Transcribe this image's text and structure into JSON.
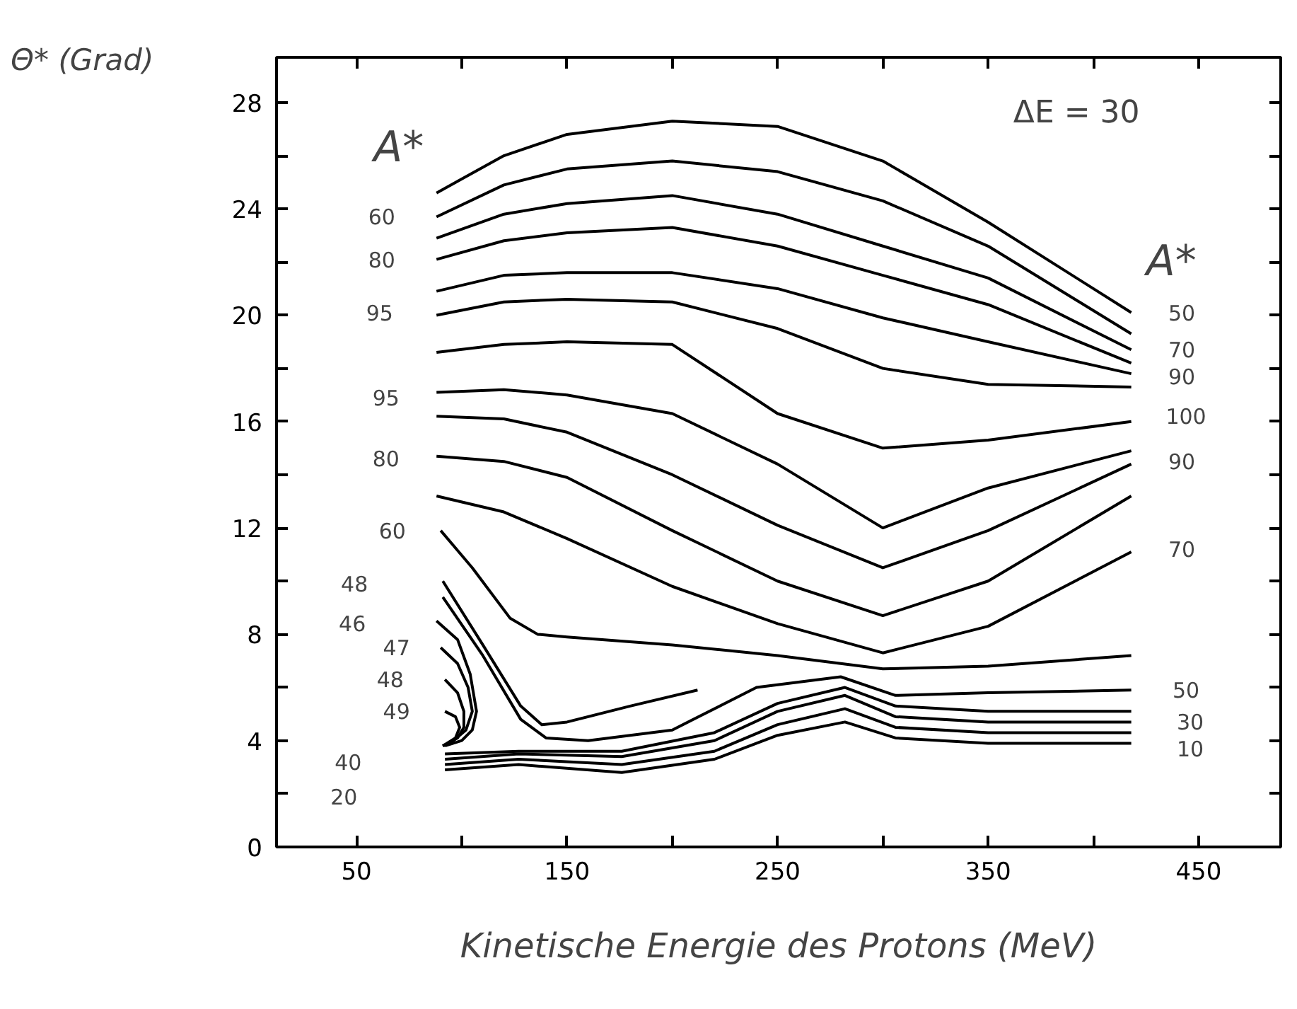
{
  "chart_data": {
    "type": "line",
    "xlabel": "Kinetische Energie des Protons (MeV)",
    "ylabel": "Θ* (Grad)",
    "xlim": [
      12,
      489
    ],
    "ylim": [
      0,
      29.7
    ],
    "xticks": [
      50,
      {
        "value": 100,
        "label": null
      },
      150,
      {
        "value": 200,
        "label": null
      },
      250,
      {
        "value": 300,
        "label": null
      },
      350,
      {
        "value": 400,
        "label": null
      },
      450
    ],
    "yticks": [
      0,
      {
        "value": 2,
        "label": null
      },
      4,
      {
        "value": 6,
        "label": null
      },
      8,
      {
        "value": 10,
        "label": null
      },
      12,
      {
        "value": 14,
        "label": null
      },
      16,
      {
        "value": 18,
        "label": null
      },
      20,
      {
        "value": 22,
        "label": null
      },
      24,
      {
        "value": 26,
        "label": null
      },
      28
    ],
    "series": [
      {
        "color": "#000000",
        "x": [
          88,
          120,
          150,
          200,
          250,
          300,
          350,
          418
        ],
        "values": [
          24.6,
          26.0,
          26.8,
          27.3,
          27.1,
          25.8,
          23.5,
          20.1
        ]
      },
      {
        "color": "#000000",
        "x": [
          88,
          120,
          150,
          200,
          250,
          300,
          350,
          418
        ],
        "values": [
          23.7,
          24.9,
          25.5,
          25.8,
          25.4,
          24.3,
          22.6,
          19.3
        ]
      },
      {
        "color": "#000000",
        "x": [
          88,
          120,
          150,
          200,
          250,
          300,
          350,
          418
        ],
        "values": [
          22.9,
          23.8,
          24.2,
          24.5,
          23.8,
          22.6,
          21.4,
          18.7
        ]
      },
      {
        "color": "#000000",
        "x": [
          88,
          120,
          150,
          200,
          250,
          300,
          350,
          418
        ],
        "values": [
          22.1,
          22.8,
          23.1,
          23.3,
          22.6,
          21.5,
          20.4,
          18.2
        ]
      },
      {
        "color": "#000000",
        "x": [
          88,
          120,
          150,
          200,
          250,
          300,
          350,
          418
        ],
        "values": [
          20.9,
          21.5,
          21.6,
          21.6,
          21.0,
          19.9,
          19.0,
          17.8
        ]
      },
      {
        "color": "#000000",
        "x": [
          88,
          120,
          150,
          200,
          250,
          300,
          350,
          418
        ],
        "values": [
          20.0,
          20.5,
          20.6,
          20.5,
          19.5,
          18.0,
          17.4,
          17.3
        ]
      },
      {
        "color": "#000000",
        "x": [
          88,
          120,
          150,
          200,
          250,
          300,
          350,
          418
        ],
        "values": [
          18.6,
          18.9,
          19.0,
          18.9,
          16.3,
          15.0,
          15.3,
          16.0
        ]
      },
      {
        "color": "#000000",
        "x": [
          88,
          120,
          150,
          200,
          250,
          300,
          350,
          418
        ],
        "values": [
          17.1,
          17.2,
          17.0,
          16.3,
          14.4,
          12.0,
          13.5,
          14.9
        ]
      },
      {
        "color": "#000000",
        "x": [
          88,
          120,
          150,
          200,
          250,
          300,
          350,
          418
        ],
        "values": [
          16.2,
          16.1,
          15.6,
          14.0,
          12.1,
          10.5,
          11.9,
          14.4
        ]
      },
      {
        "color": "#000000",
        "x": [
          88,
          120,
          150,
          200,
          250,
          300,
          350,
          418
        ],
        "values": [
          14.7,
          14.5,
          13.9,
          11.9,
          10.0,
          8.7,
          10.0,
          13.2
        ]
      },
      {
        "color": "#000000",
        "x": [
          88,
          120,
          150,
          200,
          250,
          300,
          350,
          418
        ],
        "values": [
          13.2,
          12.6,
          11.6,
          9.8,
          8.4,
          7.3,
          8.3,
          11.1
        ]
      },
      {
        "color": "#000000",
        "x": [
          90,
          105,
          123,
          136,
          150,
          200,
          250,
          300,
          350,
          418
        ],
        "values": [
          11.9,
          10.5,
          8.6,
          8.0,
          7.9,
          7.6,
          7.2,
          6.7,
          6.8,
          7.2
        ]
      },
      {
        "color": "#000000",
        "x": [
          91,
          110,
          128,
          138,
          150,
          180,
          212
        ],
        "values": [
          10.0,
          7.6,
          5.3,
          4.6,
          4.7,
          5.3,
          5.9
        ]
      },
      {
        "color": "#000000",
        "x": [
          91,
          110,
          128,
          140,
          160,
          200,
          240,
          280,
          306,
          350,
          418
        ],
        "values": [
          9.4,
          7.2,
          4.8,
          4.1,
          4.0,
          4.4,
          6.0,
          6.4,
          5.7,
          5.8,
          5.9
        ]
      },
      {
        "color": "#000000",
        "x": [
          92,
          127,
          176,
          220,
          250,
          282,
          306,
          350,
          418
        ],
        "values": [
          3.5,
          3.6,
          3.6,
          4.3,
          5.4,
          6.0,
          5.3,
          5.1,
          5.1
        ]
      },
      {
        "color": "#000000",
        "x": [
          92,
          127,
          176,
          220,
          250,
          282,
          306,
          350,
          418
        ],
        "values": [
          3.3,
          3.5,
          3.4,
          4.0,
          5.1,
          5.7,
          4.9,
          4.7,
          4.7
        ]
      },
      {
        "color": "#000000",
        "x": [
          92,
          127,
          176,
          220,
          250,
          282,
          306,
          350,
          418
        ],
        "values": [
          3.1,
          3.3,
          3.1,
          3.6,
          4.6,
          5.2,
          4.5,
          4.3,
          4.3
        ]
      },
      {
        "color": "#000000",
        "x": [
          92,
          127,
          176,
          220,
          250,
          282,
          306,
          350,
          418
        ],
        "values": [
          2.9,
          3.1,
          2.8,
          3.3,
          4.2,
          4.7,
          4.1,
          3.9,
          3.9
        ]
      },
      {
        "color": "#000000",
        "x": [
          88,
          98,
          104,
          107,
          105,
          100,
          92
        ],
        "values": [
          8.5,
          7.8,
          6.5,
          5.1,
          4.4,
          4.0,
          3.8
        ]
      },
      {
        "color": "#000000",
        "x": [
          90,
          98,
          103,
          105,
          102,
          96,
          91
        ],
        "values": [
          7.5,
          6.9,
          6.0,
          5.1,
          4.4,
          4.0,
          3.8
        ]
      },
      {
        "color": "#000000",
        "x": [
          92,
          98,
          101,
          101,
          98,
          91
        ],
        "values": [
          6.3,
          5.8,
          5.1,
          4.5,
          4.1,
          3.8
        ]
      },
      {
        "color": "#000000",
        "x": [
          92,
          97,
          99,
          97,
          91
        ],
        "values": [
          5.1,
          4.9,
          4.5,
          4.1,
          3.8
        ]
      }
    ],
    "annotations": [
      "A*",
      "ΔE = 30",
      "A*",
      "60",
      "80",
      "95",
      "95",
      "80",
      "60",
      "48",
      "46",
      "47",
      "48",
      "49",
      "40",
      "20",
      "50",
      "70",
      "90",
      "100",
      "90",
      "70",
      "50",
      "30",
      "10"
    ]
  }
}
